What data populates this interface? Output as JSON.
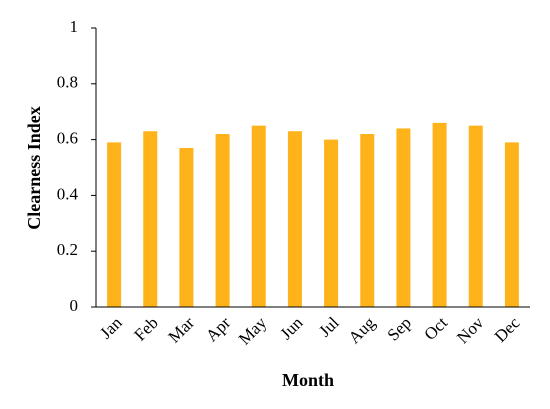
{
  "chart_data": {
    "type": "bar",
    "x_label": "Month",
    "y_label": "Clearness Index",
    "categories": [
      "Jan",
      "Feb",
      "Mar",
      "Apr",
      "May",
      "Jun",
      "Jul",
      "Aug",
      "Sep",
      "Oct",
      "Nov",
      "Dec"
    ],
    "values": [
      0.59,
      0.63,
      0.57,
      0.62,
      0.65,
      0.63,
      0.6,
      0.62,
      0.64,
      0.66,
      0.65,
      0.59
    ],
    "color": "#ffb31a",
    "ylim": [
      0,
      1
    ],
    "yticks": [
      0,
      0.2,
      0.4,
      0.6,
      0.8,
      1
    ],
    "grid": false
  }
}
